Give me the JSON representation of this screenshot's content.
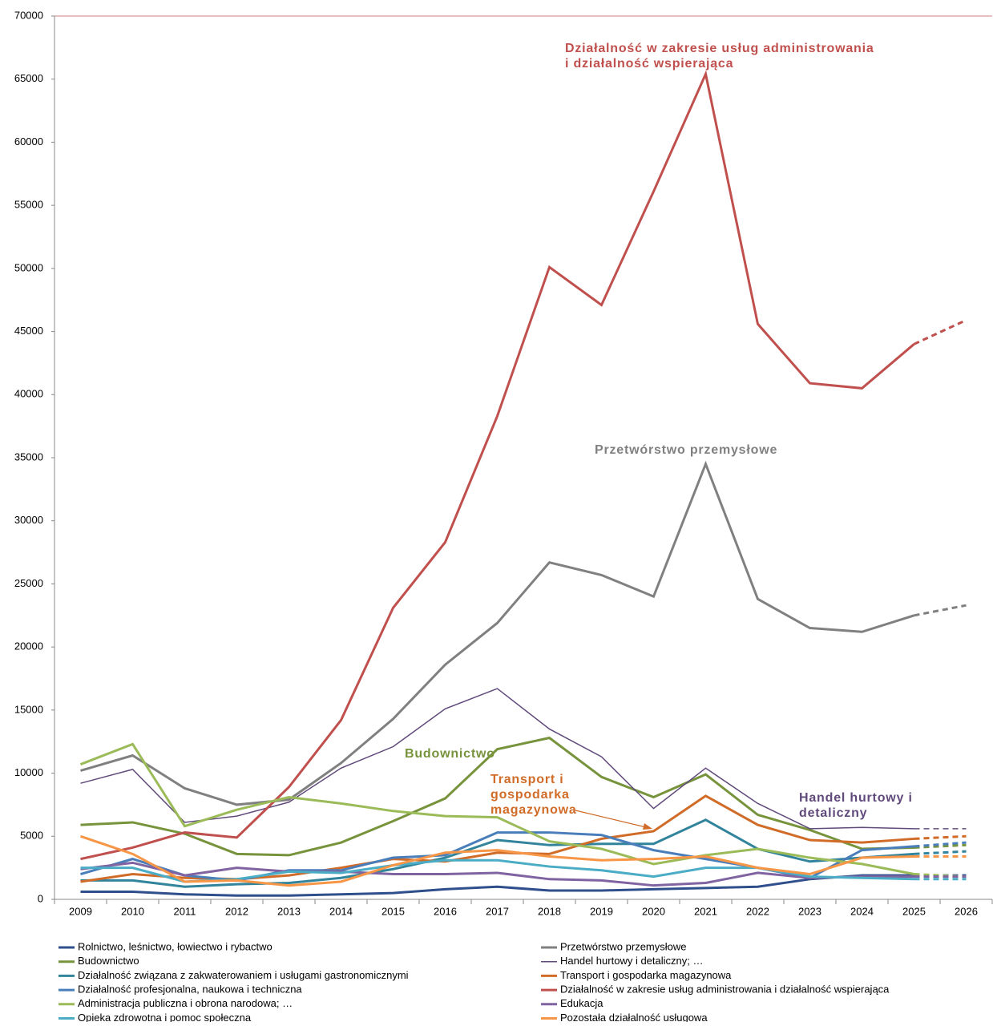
{
  "chart_data": {
    "type": "line",
    "categories": [
      "2009",
      "2010",
      "2011",
      "2012",
      "2013",
      "2014",
      "2015",
      "2016",
      "2017",
      "2018",
      "2019",
      "2020",
      "2021",
      "2022",
      "2023",
      "2024",
      "2025",
      "2026"
    ],
    "dashed_from": 16,
    "ylim": [
      0,
      70000
    ],
    "yticks": [
      0,
      5000,
      10000,
      15000,
      20000,
      25000,
      30000,
      35000,
      40000,
      45000,
      50000,
      55000,
      60000,
      65000,
      70000
    ],
    "series": [
      {
        "name": "Rolnictwo, leśnictwo, łowiectwo i rybactwo",
        "color": "#2e4f8c",
        "width": 3,
        "values": [
          600,
          600,
          400,
          300,
          300,
          400,
          500,
          800,
          1000,
          700,
          700,
          800,
          900,
          1000,
          1600,
          1900,
          1900,
          1900
        ]
      },
      {
        "name": "Przetwórstwo przemysłowe",
        "color": "#808080",
        "width": 3,
        "values": [
          10200,
          11400,
          8800,
          7500,
          7900,
          10800,
          14300,
          18600,
          21900,
          26700,
          25700,
          24000,
          34500,
          23800,
          21500,
          21200,
          22500,
          23300
        ]
      },
      {
        "name": "Budownictwo",
        "color": "#77933c",
        "width": 3,
        "values": [
          5900,
          6100,
          5200,
          3600,
          3500,
          4500,
          6200,
          8000,
          11900,
          12800,
          9700,
          8100,
          9900,
          6700,
          5500,
          4000,
          4100,
          4300
        ]
      },
      {
        "name": "Handel hurtowy i detaliczny; …",
        "color": "#604a7b",
        "width": 1.5,
        "values": [
          9200,
          10300,
          6100,
          6600,
          7700,
          10400,
          12100,
          15100,
          16700,
          13500,
          11300,
          7200,
          10400,
          7600,
          5600,
          5700,
          5600,
          5600
        ]
      },
      {
        "name": "Działalność związana z zakwaterowaniem i usługami gastronomicznymi",
        "color": "#31849b",
        "width": 3,
        "values": [
          1500,
          1500,
          1000,
          1200,
          1300,
          1700,
          2400,
          3300,
          4700,
          4300,
          4400,
          4400,
          6300,
          4000,
          3000,
          3300,
          3600,
          3800
        ]
      },
      {
        "name": "Transport i gospodarka magazynowa",
        "color": "#d06b28",
        "width": 3,
        "values": [
          1400,
          2000,
          1700,
          1600,
          1900,
          2500,
          3200,
          3000,
          3700,
          3600,
          4800,
          5400,
          8200,
          5900,
          4700,
          4500,
          4800,
          5000
        ]
      },
      {
        "name": "Działalność profesjonalna, naukowa i techniczna",
        "color": "#4a7ebb",
        "width": 3,
        "values": [
          2000,
          3200,
          1900,
          1500,
          2300,
          2300,
          3300,
          3500,
          5300,
          5300,
          5100,
          3900,
          3200,
          2500,
          1700,
          3900,
          4200,
          4500
        ]
      },
      {
        "name": "Działalność w zakresie usług administrowania i działalność wspierająca",
        "color": "#c0504d",
        "width": 3,
        "values": [
          3200,
          4100,
          5300,
          4900,
          8900,
          14200,
          23100,
          28300,
          38300,
          50100,
          47100,
          56100,
          65400,
          45600,
          40900,
          40500,
          44000,
          45900
        ]
      },
      {
        "name": "Administracja publiczna i obrona narodowa; …",
        "color": "#9bbb59",
        "width": 3,
        "values": [
          10700,
          12300,
          5800,
          7100,
          8100,
          7600,
          7000,
          6600,
          6500,
          4600,
          4000,
          2800,
          3500,
          4000,
          3300,
          2800,
          2000,
          1800
        ]
      },
      {
        "name": "Edukacja",
        "color": "#8064a2",
        "width": 3,
        "values": [
          2400,
          2900,
          1900,
          2500,
          2200,
          2200,
          2000,
          2000,
          2100,
          1600,
          1500,
          1100,
          1300,
          2100,
          1700,
          1800,
          1800,
          1800
        ]
      },
      {
        "name": "Opieka zdrowotna i pomoc społeczna",
        "color": "#4bacc6",
        "width": 3,
        "values": [
          2500,
          2500,
          1400,
          1600,
          2200,
          2100,
          2700,
          3100,
          3100,
          2600,
          2300,
          1800,
          2500,
          2500,
          1800,
          1700,
          1600,
          1600
        ]
      },
      {
        "name": "Pozostała działalność usługowa",
        "color": "#f79646",
        "width": 3,
        "values": [
          5000,
          3600,
          1400,
          1500,
          1100,
          1400,
          2700,
          3700,
          3900,
          3400,
          3100,
          3200,
          3400,
          2500,
          2000,
          3300,
          3400,
          3400
        ]
      }
    ],
    "annotations": [
      {
        "lines": [
          "Działalność w zakresie usług administrowania",
          "i działalność wspierająca"
        ],
        "color": "#c0504d"
      },
      {
        "lines": [
          "Przetwórstwo przemysłowe"
        ],
        "color": "#808080"
      },
      {
        "lines": [
          "Budownictwo"
        ],
        "color": "#77933c"
      },
      {
        "lines": [
          "Transport i",
          "gospodarka",
          "magazynowa"
        ],
        "color": "#d06b28"
      },
      {
        "lines": [
          "Handel hurtowy i",
          "detaliczny"
        ],
        "color": "#604a7b"
      }
    ]
  }
}
